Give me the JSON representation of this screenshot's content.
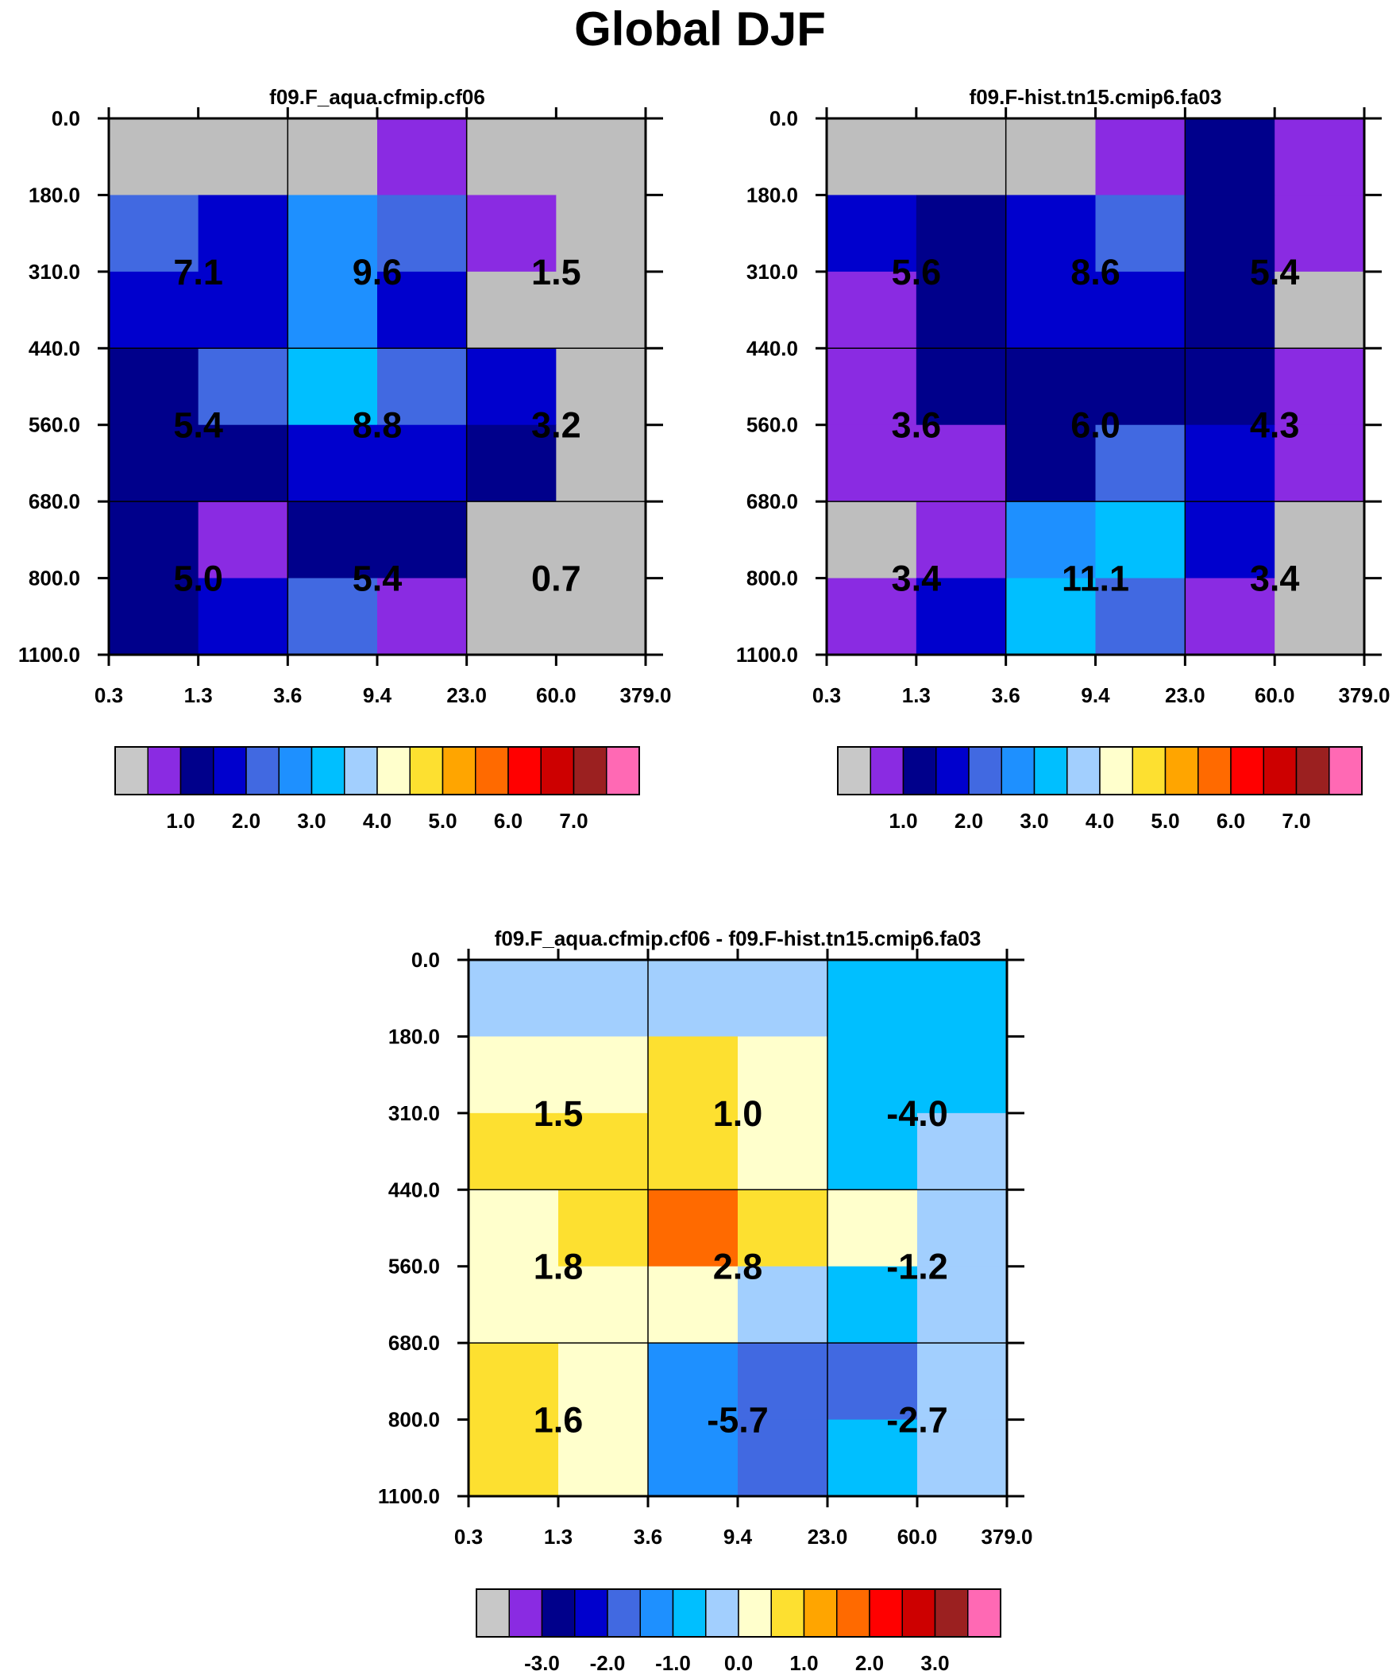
{
  "figure_title": "Global DJF",
  "chart_data": [
    {
      "type": "heatmap",
      "title": "f09.F_aqua.cfmip.cf06",
      "xticks": [
        "0.3",
        "1.3",
        "3.6",
        "9.4",
        "23.0",
        "60.0",
        "379.0"
      ],
      "yticks": [
        "0.0",
        "180.0",
        "310.0",
        "440.0",
        "560.0",
        "680.0",
        "800.0",
        "1100.0"
      ],
      "cell_colors": [
        [
          "#bebebe",
          "#bebebe",
          "#bebebe",
          "#8a2be2",
          "#bebebe",
          "#bebebe"
        ],
        [
          "#4169e1",
          "#0000cd",
          "#1e90ff",
          "#4169e1",
          "#8a2be2",
          "#bebebe"
        ],
        [
          "#0000cd",
          "#0000cd",
          "#1e90ff",
          "#0000cd",
          "#bebebe",
          "#bebebe"
        ],
        [
          "#00008b",
          "#4169e1",
          "#00bfff",
          "#4169e1",
          "#0000cd",
          "#bebebe"
        ],
        [
          "#00008b",
          "#00008b",
          "#0000cd",
          "#0000cd",
          "#00008b",
          "#bebebe"
        ],
        [
          "#00008b",
          "#8a2be2",
          "#00008b",
          "#00008b",
          "#bebebe",
          "#bebebe"
        ],
        [
          "#00008b",
          "#0000cd",
          "#4169e1",
          "#8a2be2",
          "#bebebe",
          "#bebebe"
        ]
      ],
      "box_values": [
        [
          "7.1",
          "9.6",
          "1.5"
        ],
        [
          "5.4",
          "8.8",
          "3.2"
        ],
        [
          "5.0",
          "5.4",
          "0.7"
        ]
      ],
      "colorbar": {
        "colors": [
          "#c8c8c8",
          "#8a2be2",
          "#00008b",
          "#0000cd",
          "#4169e1",
          "#1e90ff",
          "#00bfff",
          "#a2cffe",
          "#ffffcc",
          "#fde030",
          "#ffa500",
          "#ff6a00",
          "#ff0000",
          "#cd0000",
          "#9b2020",
          "#ff69b4"
        ],
        "labels": [
          "1.0",
          "2.0",
          "3.0",
          "4.0",
          "5.0",
          "6.0",
          "7.0"
        ],
        "label_boundaries": [
          2,
          4,
          6,
          8,
          10,
          12,
          14
        ]
      }
    },
    {
      "type": "heatmap",
      "title": "f09.F-hist.tn15.cmip6.fa03",
      "xticks": [
        "0.3",
        "1.3",
        "3.6",
        "9.4",
        "23.0",
        "60.0",
        "379.0"
      ],
      "yticks": [
        "0.0",
        "180.0",
        "310.0",
        "440.0",
        "560.0",
        "680.0",
        "800.0",
        "1100.0"
      ],
      "cell_colors": [
        [
          "#bebebe",
          "#bebebe",
          "#bebebe",
          "#8a2be2",
          "#00008b",
          "#8a2be2"
        ],
        [
          "#0000cd",
          "#00008b",
          "#0000cd",
          "#4169e1",
          "#00008b",
          "#8a2be2"
        ],
        [
          "#8a2be2",
          "#00008b",
          "#0000cd",
          "#0000cd",
          "#00008b",
          "#bebebe"
        ],
        [
          "#8a2be2",
          "#00008b",
          "#00008b",
          "#00008b",
          "#00008b",
          "#8a2be2"
        ],
        [
          "#8a2be2",
          "#8a2be2",
          "#00008b",
          "#4169e1",
          "#0000cd",
          "#8a2be2"
        ],
        [
          "#bebebe",
          "#8a2be2",
          "#1e90ff",
          "#00bfff",
          "#0000cd",
          "#bebebe"
        ],
        [
          "#8a2be2",
          "#0000cd",
          "#00bfff",
          "#4169e1",
          "#8a2be2",
          "#bebebe"
        ]
      ],
      "box_values": [
        [
          "5.6",
          "8.6",
          "5.4"
        ],
        [
          "3.6",
          "6.0",
          "4.3"
        ],
        [
          "3.4",
          "11.1",
          "3.4"
        ]
      ],
      "colorbar": {
        "colors": [
          "#c8c8c8",
          "#8a2be2",
          "#00008b",
          "#0000cd",
          "#4169e1",
          "#1e90ff",
          "#00bfff",
          "#a2cffe",
          "#ffffcc",
          "#fde030",
          "#ffa500",
          "#ff6a00",
          "#ff0000",
          "#cd0000",
          "#9b2020",
          "#ff69b4"
        ],
        "labels": [
          "1.0",
          "2.0",
          "3.0",
          "4.0",
          "5.0",
          "6.0",
          "7.0"
        ],
        "label_boundaries": [
          2,
          4,
          6,
          8,
          10,
          12,
          14
        ]
      }
    },
    {
      "type": "heatmap",
      "title": "f09.F_aqua.cfmip.cf06 - f09.F-hist.tn15.cmip6.fa03",
      "xticks": [
        "0.3",
        "1.3",
        "3.6",
        "9.4",
        "23.0",
        "60.0",
        "379.0"
      ],
      "yticks": [
        "0.0",
        "180.0",
        "310.0",
        "440.0",
        "560.0",
        "680.0",
        "800.0",
        "1100.0"
      ],
      "cell_colors": [
        [
          "#a2cffe",
          "#a2cffe",
          "#a2cffe",
          "#a2cffe",
          "#00bfff",
          "#00bfff"
        ],
        [
          "#ffffcc",
          "#ffffcc",
          "#fde030",
          "#ffffcc",
          "#00bfff",
          "#00bfff"
        ],
        [
          "#fde030",
          "#fde030",
          "#fde030",
          "#ffffcc",
          "#00bfff",
          "#a2cffe"
        ],
        [
          "#ffffcc",
          "#fde030",
          "#ff6a00",
          "#fde030",
          "#ffffcc",
          "#a2cffe"
        ],
        [
          "#ffffcc",
          "#ffffcc",
          "#ffffcc",
          "#a2cffe",
          "#00bfff",
          "#a2cffe"
        ],
        [
          "#fde030",
          "#ffffcc",
          "#1e90ff",
          "#4169e1",
          "#4169e1",
          "#a2cffe"
        ],
        [
          "#fde030",
          "#ffffcc",
          "#1e90ff",
          "#4169e1",
          "#00bfff",
          "#a2cffe"
        ]
      ],
      "box_values": [
        [
          "1.5",
          "1.0",
          "-4.0"
        ],
        [
          "1.8",
          "2.8",
          "-1.2"
        ],
        [
          "1.6",
          "-5.7",
          "-2.7"
        ]
      ],
      "colorbar": {
        "colors": [
          "#c8c8c8",
          "#8a2be2",
          "#00008b",
          "#0000cd",
          "#4169e1",
          "#1e90ff",
          "#00bfff",
          "#a2cffe",
          "#ffffcc",
          "#fde030",
          "#ffa500",
          "#ff6a00",
          "#ff0000",
          "#cd0000",
          "#9b2020",
          "#ff69b4"
        ],
        "labels": [
          "-3.0",
          "-2.0",
          "-1.0",
          "0.0",
          "1.0",
          "2.0",
          "3.0"
        ],
        "label_boundaries": [
          2,
          4,
          6,
          8,
          10,
          12,
          14
        ]
      }
    }
  ]
}
